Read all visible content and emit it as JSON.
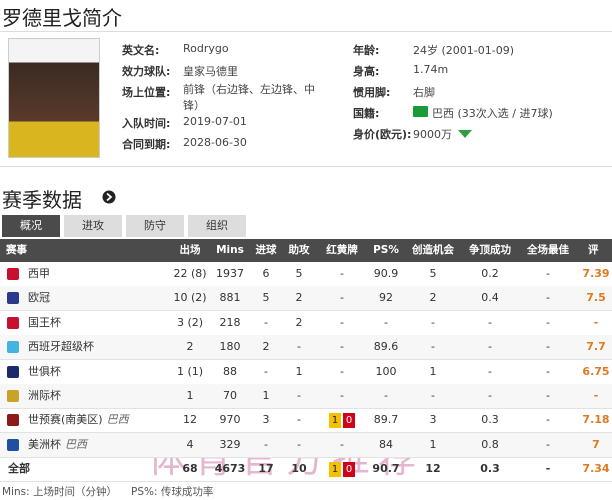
{
  "header": {
    "title": "罗德里戈简介"
  },
  "profile": {
    "left": [
      {
        "label": "英文名:",
        "value": "Rodrygo"
      },
      {
        "label": "效力球队:",
        "value": "皇家马德里"
      },
      {
        "label": "场上位置:",
        "value": "前锋（右边锋、左边锋、中锋）"
      },
      {
        "label": "入队时间:",
        "value": "2019-07-01"
      },
      {
        "label": "合同到期:",
        "value": "2028-06-30"
      }
    ],
    "right": [
      {
        "label": "年龄:",
        "value": "24岁  (2001-01-09)"
      },
      {
        "label": "身高:",
        "value": "1.74m"
      },
      {
        "label": "惯用脚:",
        "value": "右脚"
      },
      {
        "label": "国籍:",
        "value": "巴西 (33次入选 / 进7球)"
      },
      {
        "label": "身价(欧元):",
        "value": "9000万"
      }
    ]
  },
  "section": {
    "title": "赛季数据",
    "tabs": [
      "概况",
      "进攻",
      "防守",
      "组织"
    ]
  },
  "table": {
    "columns": [
      "赛事",
      "出场",
      "Mins",
      "进球",
      "助攻",
      "红黄牌",
      "PS%",
      "创造机会",
      "争顶成功",
      "全场最佳",
      "评分"
    ],
    "rows": [
      {
        "name": "西甲",
        "cells": [
          "22 (8)",
          "1937",
          "6",
          "5",
          "-",
          "90.9",
          "5",
          "0.2",
          "-",
          "7.39"
        ]
      },
      {
        "name": "欧冠",
        "cells": [
          "10 (2)",
          "881",
          "5",
          "2",
          "-",
          "92",
          "2",
          "0.4",
          "-",
          "7.5"
        ]
      },
      {
        "name": "国王杯",
        "cells": [
          "3 (2)",
          "218",
          "-",
          "2",
          "-",
          "-",
          "-",
          "-",
          "-",
          "-"
        ]
      },
      {
        "name": "西班牙超级杯",
        "cells": [
          "2",
          "180",
          "2",
          "-",
          "-",
          "89.6",
          "-",
          "-",
          "-",
          "7.7"
        ]
      },
      {
        "name": "世俱杯",
        "cells": [
          "1 (1)",
          "88",
          "-",
          "1",
          "-",
          "100",
          "1",
          "-",
          "-",
          "6.75"
        ]
      },
      {
        "name": "洲际杯",
        "cells": [
          "1",
          "70",
          "1",
          "-",
          "-",
          "-",
          "-",
          "-",
          "-",
          "-"
        ]
      },
      {
        "name": "世预赛(南美区)",
        "team": "巴西",
        "cells": [
          "12",
          "970",
          "3",
          "-",
          {
            "yellow": "1",
            "red": "0"
          },
          "89.7",
          "3",
          "0.3",
          "-",
          "7.18"
        ]
      },
      {
        "name": "美洲杯",
        "team": "巴西",
        "cells": [
          "4",
          "329",
          "-",
          "-",
          "-",
          "84",
          "1",
          "0.8",
          "-",
          "7"
        ]
      },
      {
        "name": "全部",
        "cells": [
          "68",
          "4673",
          "17",
          "10",
          {
            "yellow": "1",
            "red": "0"
          },
          "90.7",
          "12",
          "0.3",
          "-",
          "7.34"
        ]
      }
    ]
  },
  "footnote": [
    "Mins: 上场时间（分钟）",
    "PS%: 传球成功率"
  ],
  "watermark": "体育官方推荐"
}
